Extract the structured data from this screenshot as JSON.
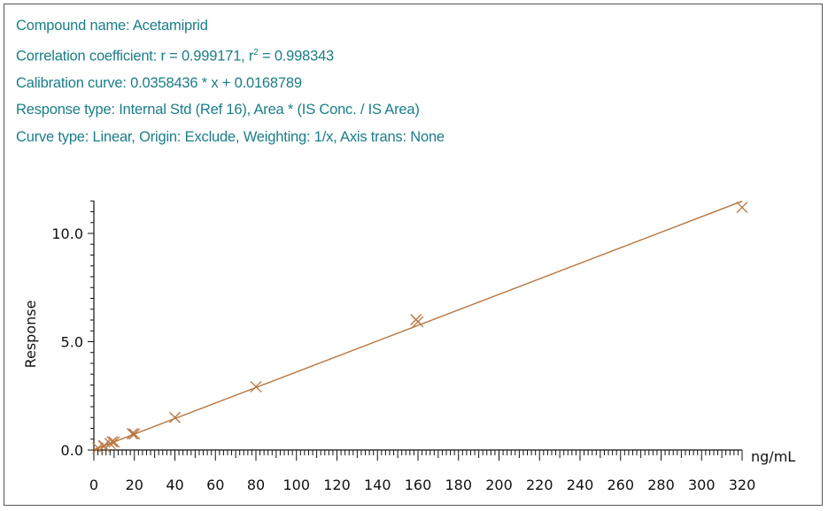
{
  "header": {
    "compound_line": "Compound name: Acetamiprid",
    "correlation_prefix": "Correlation coefficient: r = 0.999171, r",
    "correlation_sup": "2",
    "correlation_suffix": " = 0.998343",
    "calibration_line": "Calibration curve: 0.0358436 * x + 0.0168789",
    "response_line": "Response type: Internal Std (Ref 16), Area * (IS Conc. / IS Area)",
    "curve_type_line": "Curve type: Linear, Origin: Exclude, Weighting: 1/x, Axis trans: None"
  },
  "colors": {
    "header_text": "#1a7d8a",
    "curve": "#b8743e",
    "marker": "#b8743e",
    "axis": "#111111"
  },
  "chart_data": {
    "type": "scatter",
    "title": "",
    "xlabel": "ng/mL",
    "ylabel": "Response",
    "xlim": [
      0,
      320
    ],
    "ylim": [
      0,
      11.5
    ],
    "x_ticks": [
      0,
      20,
      40,
      60,
      80,
      100,
      120,
      140,
      160,
      180,
      200,
      220,
      240,
      260,
      280,
      300,
      320
    ],
    "x_tick_labels": [
      "0",
      "20",
      "40",
      "60",
      "80",
      "100",
      "120",
      "140",
      "160",
      "180",
      "200",
      "220",
      "240",
      "260",
      "280",
      "300",
      "320"
    ],
    "y_ticks": [
      0,
      5,
      10
    ],
    "y_tick_labels": [
      "0.0",
      "5.0",
      "10.0"
    ],
    "fit": {
      "slope": 0.0358436,
      "intercept": 0.0168789,
      "x_range": [
        0,
        320
      ]
    },
    "series": [
      {
        "points": [
          [
            2,
            0.09
          ],
          [
            5,
            0.2
          ],
          [
            5,
            0.17
          ],
          [
            8,
            0.3
          ],
          [
            9,
            0.38
          ],
          [
            10,
            0.37
          ],
          [
            19,
            0.75
          ],
          [
            20,
            0.74
          ],
          [
            40,
            1.5
          ],
          [
            80,
            2.92
          ],
          [
            159,
            6.02
          ],
          [
            160,
            5.92
          ],
          [
            320,
            11.2
          ]
        ]
      }
    ],
    "grid": false,
    "legend": "none"
  }
}
